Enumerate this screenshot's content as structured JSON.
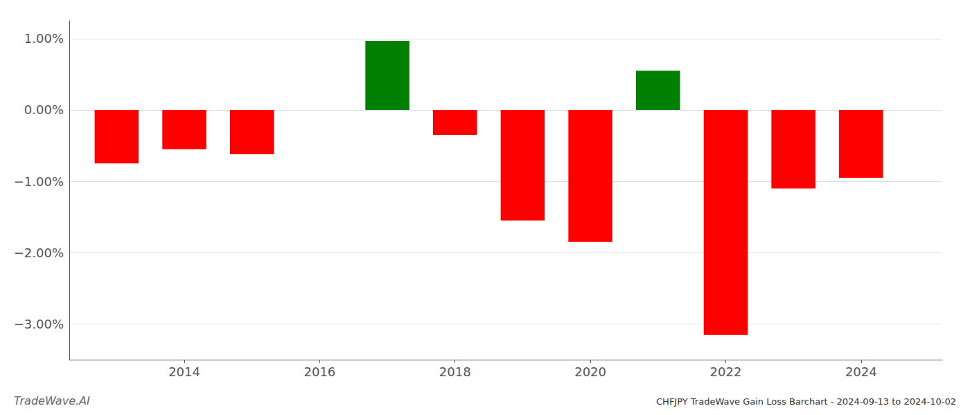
{
  "chart_data": {
    "type": "bar",
    "title": "CHFJPY TradeWave Gain Loss Barchart - 2024-09-13 to 2024-10-02",
    "annotations": [
      "TradeWave.AI"
    ],
    "x": [
      2013,
      2014,
      2015,
      2017,
      2018,
      2019,
      2020,
      2021,
      2022,
      2023,
      2024
    ],
    "values": [
      -0.75,
      -0.55,
      -0.62,
      0.97,
      -0.35,
      -1.55,
      -1.85,
      0.55,
      -3.15,
      -1.1,
      -0.95
    ],
    "colors": [
      "#FF0000",
      "#FF0000",
      "#FF0000",
      "#008000",
      "#FF0000",
      "#FF0000",
      "#FF0000",
      "#008000",
      "#FF0000",
      "#FF0000",
      "#FF0000"
    ],
    "xlim": [
      2012.3,
      2025.2
    ],
    "xticks": [
      2014,
      2016,
      2018,
      2020,
      2022,
      2024
    ],
    "ylim": [
      -3.5,
      1.25
    ],
    "yticks": [
      {
        "value": -3.0,
        "label": "−3.00%"
      },
      {
        "value": -2.0,
        "label": "−2.00%"
      },
      {
        "value": -1.0,
        "label": "−1.00%"
      },
      {
        "value": 0.0,
        "label": "0.00%"
      },
      {
        "value": 1.0,
        "label": "1.00%"
      }
    ],
    "grid": true
  }
}
